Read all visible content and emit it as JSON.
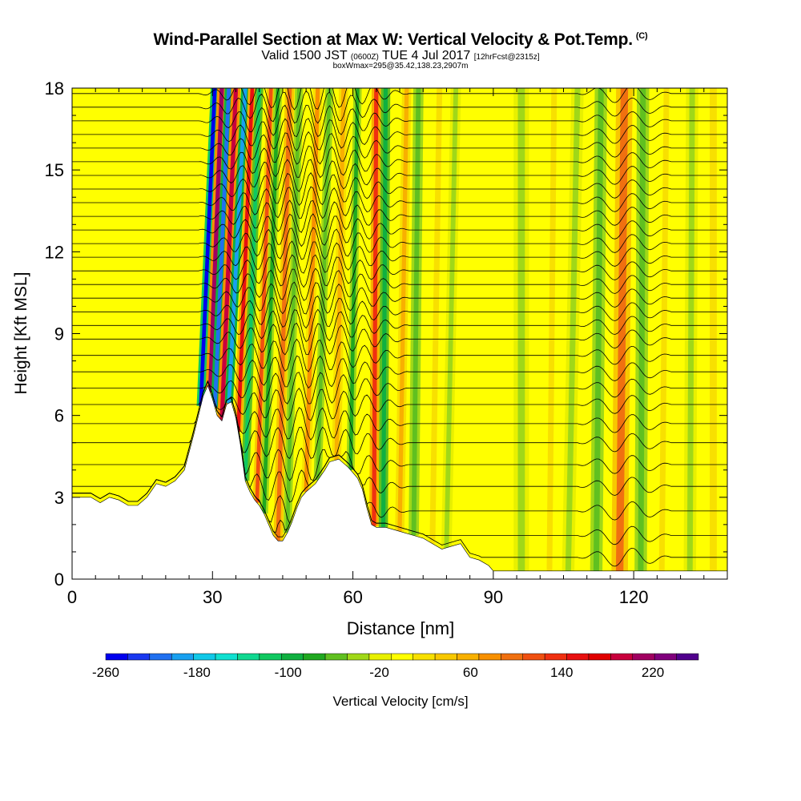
{
  "title": {
    "main": "Wind-Parallel Section at Max W: Vertical Velocity & Pot.Temp.",
    "copyright": "(C)",
    "valid_prefix": "Valid 1500 JST",
    "valid_z": "(0600Z)",
    "valid_date": "TUE 4 Jul 2017",
    "forecast": "[12hrFcst@2315z]",
    "box_info": "boxWmax=295@35.42,138.23,2907m"
  },
  "chart_data": {
    "type": "heatmap",
    "xlabel": "Distance [nm]",
    "ylabel": "Height [Kft MSL]",
    "xlim": [
      0,
      140
    ],
    "ylim": [
      0,
      18
    ],
    "x_ticks": [
      0,
      30,
      60,
      90,
      120
    ],
    "y_ticks": [
      0,
      3,
      6,
      9,
      12,
      15,
      18
    ],
    "colorbar": {
      "label": "Vertical Velocity [cm/s]",
      "tick_labels": [
        -260,
        -180,
        -100,
        -20,
        60,
        140,
        220
      ],
      "levels": [
        -260,
        -240,
        -220,
        -200,
        -180,
        -160,
        -140,
        -120,
        -100,
        -80,
        -60,
        -40,
        -20,
        0,
        20,
        40,
        60,
        80,
        100,
        120,
        140,
        160,
        180,
        200,
        220,
        240,
        260
      ],
      "colors": [
        "#0000ee",
        "#1a38f0",
        "#2070f0",
        "#18a0f0",
        "#10c8e8",
        "#10e0d0",
        "#10d890",
        "#10c860",
        "#10b040",
        "#20a820",
        "#60c020",
        "#a0d818",
        "#e8f000",
        "#ffff00",
        "#f8e000",
        "#f8c800",
        "#f8b000",
        "#f89000",
        "#f07010",
        "#f05010",
        "#f03010",
        "#e81010",
        "#e00000",
        "#c8003c",
        "#a00060",
        "#80007c",
        "#50008c"
      ]
    },
    "terrain": [
      [
        0,
        3.0
      ],
      [
        2,
        3.0
      ],
      [
        4,
        3.0
      ],
      [
        6,
        2.8
      ],
      [
        8,
        3.0
      ],
      [
        10,
        2.9
      ],
      [
        12,
        2.7
      ],
      [
        14,
        2.7
      ],
      [
        16,
        3.0
      ],
      [
        18,
        3.5
      ],
      [
        20,
        3.4
      ],
      [
        22,
        3.6
      ],
      [
        24,
        4.0
      ],
      [
        26,
        5.3
      ],
      [
        27,
        6.0
      ],
      [
        28,
        6.7
      ],
      [
        29,
        7.1
      ],
      [
        30,
        6.6
      ],
      [
        31,
        6.0
      ],
      [
        32,
        5.8
      ],
      [
        33,
        6.4
      ],
      [
        34,
        6.5
      ],
      [
        35,
        5.9
      ],
      [
        36,
        4.9
      ],
      [
        37,
        3.6
      ],
      [
        38,
        3.2
      ],
      [
        39,
        2.9
      ],
      [
        40,
        2.7
      ],
      [
        41,
        2.4
      ],
      [
        42,
        2.0
      ],
      [
        43,
        1.6
      ],
      [
        44,
        1.4
      ],
      [
        45,
        1.4
      ],
      [
        46,
        1.7
      ],
      [
        47,
        2.1
      ],
      [
        48,
        2.6
      ],
      [
        49,
        3.0
      ],
      [
        50,
        3.2
      ],
      [
        52,
        3.5
      ],
      [
        54,
        4.0
      ],
      [
        55,
        4.3
      ],
      [
        57,
        4.4
      ],
      [
        59,
        4.1
      ],
      [
        60,
        3.9
      ],
      [
        61,
        3.7
      ],
      [
        62,
        3.3
      ],
      [
        63,
        2.6
      ],
      [
        64,
        2.0
      ],
      [
        65,
        1.9
      ],
      [
        67,
        1.9
      ],
      [
        69,
        1.8
      ],
      [
        71,
        1.7
      ],
      [
        73,
        1.6
      ],
      [
        75,
        1.5
      ],
      [
        77,
        1.3
      ],
      [
        79,
        1.1
      ],
      [
        81,
        1.2
      ],
      [
        83,
        1.3
      ],
      [
        85,
        0.8
      ],
      [
        87,
        0.7
      ],
      [
        89,
        0.5
      ],
      [
        90,
        0.3
      ],
      [
        140,
        0.3
      ]
    ],
    "updrafts": [
      {
        "x": 27.5,
        "x_top": 30.5,
        "w": 0.8,
        "value": -260
      },
      {
        "x": 29.5,
        "x_top": 32.0,
        "w": 0.9,
        "value": 220
      },
      {
        "x": 30.5,
        "x_top": 33.5,
        "w": 0.8,
        "value": -220
      },
      {
        "x": 32.0,
        "x_top": 35.0,
        "w": 0.9,
        "value": 200
      },
      {
        "x": 33.5,
        "x_top": 37.0,
        "w": 0.8,
        "value": -200
      },
      {
        "x": 35.5,
        "x_top": 38.5,
        "w": 0.8,
        "value": 160
      },
      {
        "x": 37.0,
        "x_top": 40.0,
        "w": 0.8,
        "value": -120
      },
      {
        "x": 39.5,
        "x_top": 42.5,
        "w": 0.8,
        "value": 120
      },
      {
        "x": 41.0,
        "x_top": 44.0,
        "w": 0.8,
        "value": -80
      },
      {
        "x": 44.0,
        "x_top": 46.5,
        "w": 0.9,
        "value": 100
      },
      {
        "x": 46.0,
        "x_top": 48.5,
        "w": 0.8,
        "value": -60
      },
      {
        "x": 50.0,
        "x_top": 52.5,
        "w": 0.9,
        "value": 80
      },
      {
        "x": 52.5,
        "x_top": 55.0,
        "w": 0.8,
        "value": -60
      },
      {
        "x": 56.5,
        "x_top": 58.0,
        "w": 0.9,
        "value": 60
      },
      {
        "x": 59.5,
        "x_top": 61.0,
        "w": 0.8,
        "value": -80
      },
      {
        "x": 64.5,
        "x_top": 65.0,
        "w": 0.9,
        "value": 140
      },
      {
        "x": 66.5,
        "x_top": 67.0,
        "w": 0.9,
        "value": -100
      },
      {
        "x": 70.0,
        "x_top": 71.5,
        "w": 0.9,
        "value": 60
      },
      {
        "x": 73.0,
        "x_top": 74.0,
        "w": 1.0,
        "value": -60
      },
      {
        "x": 77.0,
        "x_top": 78.5,
        "w": 1.2,
        "value": 20
      },
      {
        "x": 80.0,
        "x_top": 82.0,
        "w": 1.0,
        "value": -40
      },
      {
        "x": 96.0,
        "x_top": 96.0,
        "w": 1.5,
        "value": -40
      },
      {
        "x": 102.0,
        "x_top": 103.0,
        "w": 1.2,
        "value": 20
      },
      {
        "x": 106.0,
        "x_top": 108.0,
        "w": 1.2,
        "value": -40
      },
      {
        "x": 112.0,
        "x_top": 113.0,
        "w": 1.2,
        "value": -60
      },
      {
        "x": 117.0,
        "x_top": 118.0,
        "w": 1.6,
        "value": 100
      },
      {
        "x": 121.5,
        "x_top": 122.0,
        "w": 1.2,
        "value": -60
      },
      {
        "x": 126.0,
        "x_top": 127.0,
        "w": 1.2,
        "value": 20
      },
      {
        "x": 132.0,
        "x_top": 132.5,
        "w": 1.2,
        "value": -40
      },
      {
        "x": 137.0,
        "x_top": 137.0,
        "w": 1.5,
        "value": 20
      }
    ],
    "theta_contours": {
      "levels_kft": [
        0.8,
        1.6,
        2.5,
        3.4,
        4.2,
        5.0,
        5.7,
        6.4,
        7.0,
        7.6,
        8.2,
        8.8,
        9.3,
        9.8,
        10.3,
        10.8,
        11.3,
        11.8,
        12.3,
        12.8,
        13.3,
        13.8,
        14.3,
        14.8,
        15.3,
        15.8,
        16.3,
        16.8,
        17.3,
        17.8
      ],
      "wave_zone_nm": [
        27,
        72
      ],
      "wave_amplitude_kft": 0.6
    }
  }
}
